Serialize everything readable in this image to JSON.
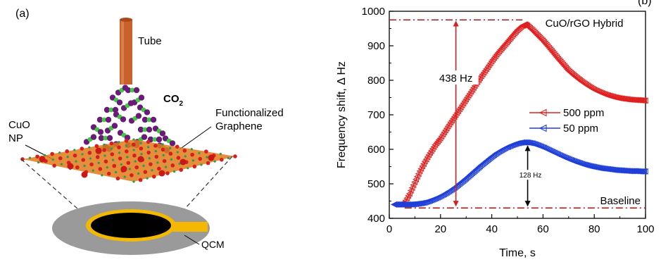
{
  "panel_a": {
    "panel_label": "(a)",
    "tube_label": "Tube",
    "gas_label": {
      "main": "CO",
      "subscript": "2"
    },
    "cuo_label": {
      "line1": "CuO",
      "line2": "NP"
    },
    "graphene_label": {
      "line1": "Functionalized",
      "line2": "Graphene"
    },
    "qcm_label": "QCM",
    "colors": {
      "tube": "#c8622a",
      "carbon": "#6a1b7a",
      "oxygen": "#3dcc3d",
      "sheet": "#e07a1a",
      "sheet_atoms": "#d42020",
      "crystal": "#000000",
      "electrode": "#f5b800",
      "disk": "#999999"
    }
  },
  "panel_b": {
    "panel_label": "(b)",
    "chart_data": {
      "type": "line",
      "title": "CuO/rGO Hybrid",
      "xlabel": "Time, s",
      "ylabel": "Frequency shift, Δ Hz",
      "xlim": [
        0,
        100
      ],
      "ylim": [
        400,
        1000
      ],
      "xticks": [
        0,
        20,
        40,
        60,
        80,
        100
      ],
      "yticks": [
        400,
        500,
        600,
        700,
        800,
        900,
        1000
      ],
      "series": [
        {
          "name": "500 ppm",
          "color": "#e02020",
          "marker": "left-triangle",
          "x": [
            2,
            4,
            6,
            8,
            10,
            12,
            14,
            16,
            18,
            20,
            22,
            24,
            26,
            28,
            30,
            32,
            34,
            36,
            38,
            40,
            42,
            44,
            46,
            48,
            50,
            52,
            53,
            54,
            56,
            58,
            60,
            62,
            64,
            66,
            68,
            70,
            72,
            74,
            76,
            78,
            80,
            82,
            84,
            86,
            88,
            90,
            92,
            94,
            96,
            98,
            100
          ],
          "y": [
            440,
            440,
            445,
            472,
            505,
            537,
            565,
            590,
            613,
            632,
            655,
            678,
            700,
            722,
            745,
            767,
            790,
            812,
            833,
            855,
            875,
            893,
            910,
            928,
            945,
            958,
            962,
            958,
            945,
            930,
            915,
            898,
            880,
            862,
            845,
            828,
            815,
            803,
            792,
            782,
            773,
            766,
            760,
            755,
            751,
            748,
            746,
            744,
            743,
            742,
            741
          ]
        },
        {
          "name": "50 ppm",
          "color": "#1f3fd8",
          "marker": "left-triangle",
          "x": [
            2,
            4,
            6,
            8,
            10,
            12,
            14,
            16,
            18,
            20,
            22,
            24,
            26,
            28,
            30,
            32,
            34,
            36,
            38,
            40,
            42,
            44,
            46,
            48,
            50,
            52,
            54,
            56,
            58,
            60,
            62,
            64,
            66,
            68,
            70,
            72,
            74,
            76,
            78,
            80,
            82,
            84,
            86,
            88,
            90,
            92,
            94,
            96,
            98,
            100
          ],
          "y": [
            440,
            440,
            440,
            440,
            441,
            443,
            446,
            451,
            457,
            464,
            472,
            481,
            491,
            503,
            515,
            528,
            541,
            554,
            566,
            578,
            589,
            598,
            606,
            612,
            617,
            620,
            620,
            617,
            612,
            606,
            599,
            592,
            585,
            578,
            572,
            566,
            561,
            556,
            552,
            549,
            546,
            544,
            542,
            540,
            539,
            538,
            537,
            537,
            536,
            536
          ]
        }
      ],
      "annotations": {
        "max_line_value": 975,
        "baseline_value": 430,
        "big_arrow": {
          "x": 26,
          "from": 975,
          "to": 432,
          "label": "438 Hz"
        },
        "small_arrow": {
          "x": 54,
          "from": 618,
          "to": 432,
          "label": "128 Hz"
        },
        "baseline_label": "Baseline",
        "line_color": "#a61c1c",
        "arrow_color": "#d42020"
      },
      "legend_placement": "right-middle"
    }
  }
}
